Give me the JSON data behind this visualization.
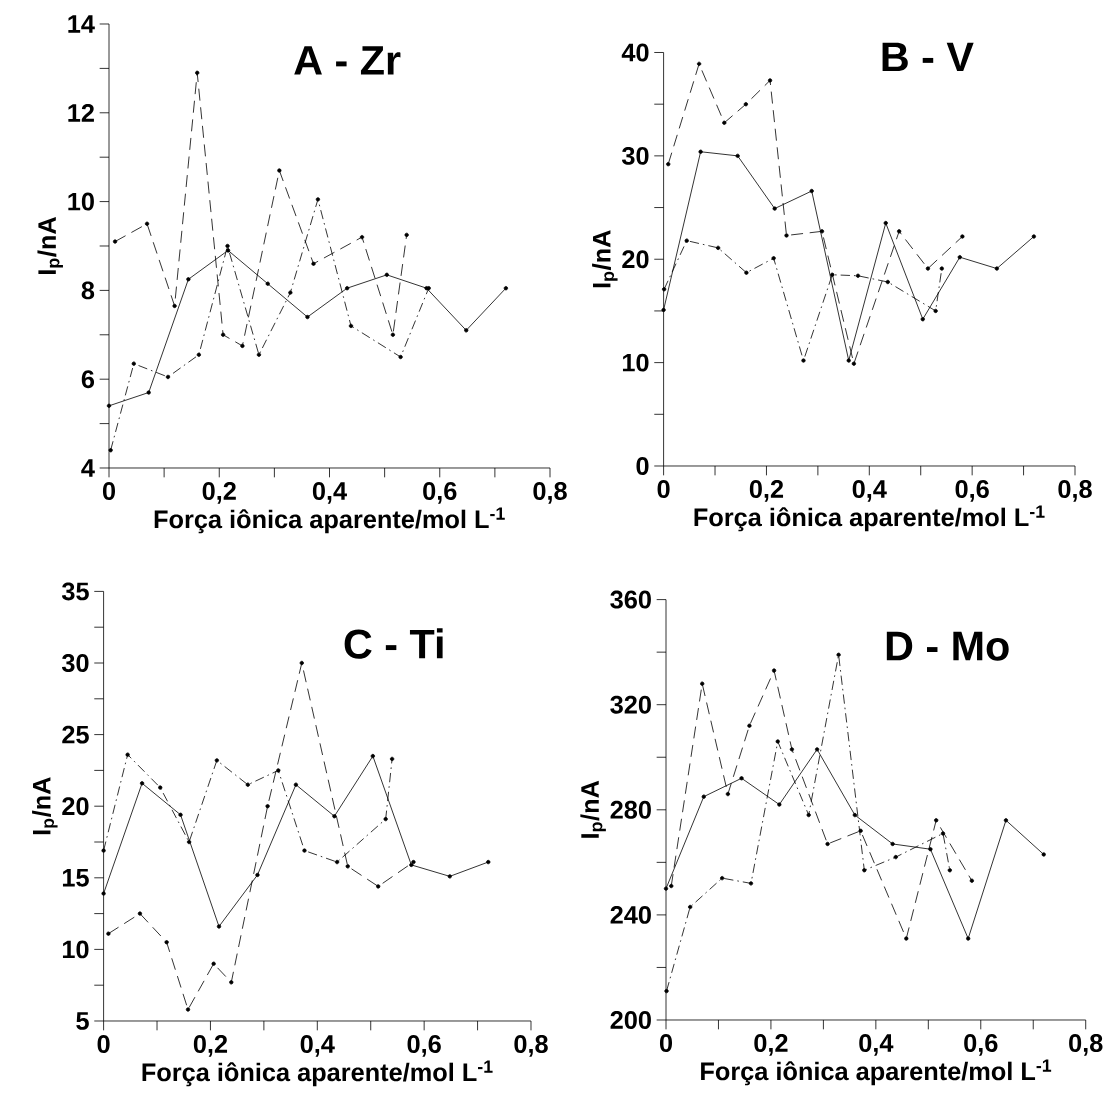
{
  "chart_data": [
    {
      "type": "line",
      "title": "A - Zr",
      "xlabel": "Força iônica aparente/mol L$^{-1}$",
      "ylabel": "I$_{p}$/nA",
      "marker": "circle",
      "xlim": [
        0,
        0.8
      ],
      "ylim": [
        4,
        14
      ],
      "xticks": [
        0,
        {
          "value": 0.1,
          "label": null
        },
        {
          "value": 0.2,
          "label": "0,2"
        },
        {
          "value": 0.3,
          "label": null
        },
        {
          "value": 0.4,
          "label": "0,4"
        },
        {
          "value": 0.5,
          "label": null
        },
        {
          "value": 0.6,
          "label": "0,6"
        },
        {
          "value": 0.7,
          "label": null
        },
        {
          "value": 0.8,
          "label": "0,8"
        }
      ],
      "yticks": [
        4,
        {
          "value": 5,
          "label": null
        },
        6,
        {
          "value": 7,
          "label": null
        },
        8,
        {
          "value": 9,
          "label": null
        },
        10,
        {
          "value": 11,
          "label": null
        },
        12,
        {
          "value": 13,
          "label": null
        },
        14
      ],
      "series": [
        {
          "color": "#000000",
          "line_style": "solid",
          "x": [
            0,
            0.072,
            0.144,
            0.216,
            0.288,
            0.36,
            0.432,
            0.504,
            0.576,
            0.648,
            0.72
          ],
          "values": [
            5.4,
            5.7,
            8.25,
            8.9,
            8.15,
            7.4,
            8.05,
            8.35,
            8.05,
            7.1,
            8.05
          ]
        },
        {
          "color": "#000000",
          "line_style": "dashed",
          "x": [
            0.011,
            0.069,
            0.119,
            0.16,
            0.207,
            0.242,
            0.309,
            0.371,
            0.459,
            0.515,
            0.54
          ],
          "values": [
            9.1,
            9.5,
            7.65,
            12.9,
            7.0,
            6.75,
            10.7,
            8.6,
            9.2,
            7.0,
            9.25
          ]
        },
        {
          "color": "#000000",
          "line_style": "dotted",
          "x": [
            0.003,
            0.045,
            0.107,
            0.163,
            0.215,
            0.272,
            0.329,
            0.379,
            0.439,
            0.529,
            0.58
          ],
          "values": [
            4.4,
            6.35,
            6.05,
            6.55,
            9.0,
            6.55,
            7.95,
            10.05,
            7.2,
            6.5,
            8.05
          ]
        }
      ]
    },
    {
      "type": "line",
      "title": "B - V",
      "xlabel": "Força iônica aparente/mol L$^{-1}$",
      "ylabel": "I$_{p}$/nA",
      "marker": "circle",
      "xlim": [
        0,
        0.8
      ],
      "ylim": [
        0,
        40
      ],
      "xticks": [
        0,
        {
          "value": 0.1,
          "label": null
        },
        {
          "value": 0.2,
          "label": "0,2"
        },
        {
          "value": 0.3,
          "label": null
        },
        {
          "value": 0.4,
          "label": "0,4"
        },
        {
          "value": 0.5,
          "label": null
        },
        {
          "value": 0.6,
          "label": "0,6"
        },
        {
          "value": 0.7,
          "label": null
        },
        {
          "value": 0.8,
          "label": "0,8"
        }
      ],
      "yticks": [
        0,
        {
          "value": 5,
          "label": null
        },
        10,
        {
          "value": 15,
          "label": null
        },
        20,
        {
          "value": 25,
          "label": null
        },
        30,
        {
          "value": 35,
          "label": null
        },
        40
      ],
      "series": [
        {
          "color": "#000000",
          "line_style": "solid",
          "x": [
            0,
            0.072,
            0.144,
            0.216,
            0.288,
            0.36,
            0.432,
            0.504,
            0.576,
            0.648,
            0.72
          ],
          "values": [
            15.1,
            30.4,
            30.0,
            24.9,
            26.6,
            10.2,
            23.5,
            14.2,
            20.2,
            19.1,
            22.2
          ]
        },
        {
          "color": "#000000",
          "line_style": "dashed",
          "x": [
            0.009,
            0.069,
            0.118,
            0.16,
            0.207,
            0.239,
            0.308,
            0.37,
            0.458,
            0.514,
            0.581
          ],
          "values": [
            29.2,
            38.9,
            33.2,
            35.0,
            37.3,
            22.3,
            22.7,
            9.9,
            22.7,
            19.1,
            22.2
          ]
        },
        {
          "color": "#000000",
          "line_style": "dotted",
          "x": [
            0.001,
            0.045,
            0.106,
            0.161,
            0.214,
            0.272,
            0.328,
            0.378,
            0.436,
            0.529,
            0.541
          ],
          "values": [
            17.1,
            21.8,
            21.1,
            18.7,
            20.1,
            10.2,
            18.5,
            18.4,
            17.8,
            15.0,
            19.1
          ]
        }
      ]
    },
    {
      "type": "line",
      "title": "C - Ti",
      "xlabel": "Força iônica aparente/mol L$^{-1}$",
      "ylabel": "I$_{p}$/nA",
      "marker": "circle",
      "xlim": [
        0,
        0.8
      ],
      "ylim": [
        5,
        35
      ],
      "xticks": [
        0,
        {
          "value": 0.1,
          "label": null
        },
        {
          "value": 0.2,
          "label": "0,2"
        },
        {
          "value": 0.3,
          "label": null
        },
        {
          "value": 0.4,
          "label": "0,4"
        },
        {
          "value": 0.5,
          "label": null
        },
        {
          "value": 0.6,
          "label": "0,6"
        },
        {
          "value": 0.7,
          "label": null
        },
        {
          "value": 0.8,
          "label": "0,8"
        }
      ],
      "yticks": [
        5,
        {
          "value": 7.5,
          "label": null
        },
        10,
        {
          "value": 12.5,
          "label": null
        },
        15,
        {
          "value": 17.5,
          "label": null
        },
        20,
        {
          "value": 22.5,
          "label": null
        },
        25,
        {
          "value": 27.5,
          "label": null
        },
        30,
        {
          "value": 32.5,
          "label": null
        },
        35
      ],
      "series": [
        {
          "color": "#000000",
          "line_style": "solid",
          "x": [
            0,
            0.072,
            0.144,
            0.216,
            0.288,
            0.36,
            0.432,
            0.504,
            0.576,
            0.648,
            0.72
          ],
          "values": [
            13.9,
            21.6,
            19.4,
            11.6,
            15.2,
            21.5,
            19.3,
            23.5,
            15.9,
            15.1,
            16.1
          ]
        },
        {
          "color": "#000000",
          "line_style": "dashed",
          "x": [
            0.009,
            0.068,
            0.118,
            0.158,
            0.206,
            0.239,
            0.307,
            0.371,
            0.457,
            0.514,
            0.58
          ],
          "values": [
            11.1,
            12.5,
            10.5,
            5.8,
            9.0,
            7.7,
            20.0,
            30.0,
            15.8,
            14.4,
            16.1
          ]
        },
        {
          "color": "#000000",
          "line_style": "dotted",
          "x": [
            0,
            0.045,
            0.106,
            0.16,
            0.212,
            0.27,
            0.327,
            0.376,
            0.437,
            0.528,
            0.54
          ],
          "values": [
            16.9,
            23.6,
            21.3,
            17.5,
            23.2,
            21.5,
            22.5,
            16.9,
            16.1,
            19.1,
            23.3
          ]
        }
      ]
    },
    {
      "type": "line",
      "title": "D - Mo",
      "xlabel": "Força iônica aparente/mol L$^{-1}$",
      "ylabel": "I$_{p}$/nA",
      "marker": "circle",
      "xlim": [
        0,
        0.8
      ],
      "ylim": [
        200,
        360
      ],
      "xticks": [
        0,
        {
          "value": 0.1,
          "label": null
        },
        {
          "value": 0.2,
          "label": "0,2"
        },
        {
          "value": 0.3,
          "label": null
        },
        {
          "value": 0.4,
          "label": "0,4"
        },
        {
          "value": 0.5,
          "label": null
        },
        {
          "value": 0.6,
          "label": "0,6"
        },
        {
          "value": 0.7,
          "label": null
        },
        {
          "value": 0.8,
          "label": "0,8"
        }
      ],
      "yticks": [
        200,
        {
          "value": 220,
          "label": null
        },
        240,
        {
          "value": 260,
          "label": null
        },
        280,
        {
          "value": 300,
          "label": null
        },
        320,
        {
          "value": 340,
          "label": null
        },
        360
      ],
      "series": [
        {
          "color": "#000000",
          "line_style": "solid",
          "x": [
            0,
            0.072,
            0.144,
            0.216,
            0.288,
            0.36,
            0.432,
            0.504,
            0.576,
            0.648,
            0.72
          ],
          "values": [
            250,
            285,
            292,
            282,
            303,
            278,
            267,
            265,
            231,
            276,
            263
          ]
        },
        {
          "color": "#000000",
          "line_style": "dashed",
          "x": [
            0.01,
            0.069,
            0.118,
            0.159,
            0.206,
            0.24,
            0.308,
            0.371,
            0.458,
            0.515,
            0.583
          ],
          "values": [
            251,
            328,
            286,
            312,
            333,
            303,
            267,
            272,
            231,
            276,
            253
          ]
        },
        {
          "color": "#000000",
          "line_style": "dotted",
          "x": [
            0.001,
            0.046,
            0.107,
            0.162,
            0.213,
            0.272,
            0.329,
            0.378,
            0.438,
            0.528,
            0.541
          ],
          "values": [
            211,
            243,
            254,
            252,
            306,
            278,
            339,
            257,
            262,
            271,
            257
          ]
        }
      ]
    }
  ]
}
